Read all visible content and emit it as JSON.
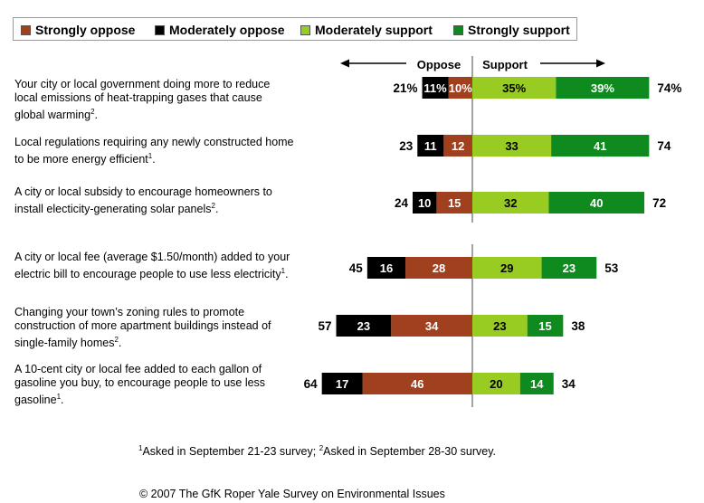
{
  "legend": {
    "items": [
      {
        "label": "Strongly oppose",
        "color": "#a0401e"
      },
      {
        "label": "Moderately oppose",
        "color": "#000000"
      },
      {
        "label": "Moderately support",
        "color": "#99cc22"
      },
      {
        "label": "Strongly support",
        "color": "#0e8a1e"
      }
    ]
  },
  "axis": {
    "oppose_label": "Oppose",
    "support_label": "Support"
  },
  "chart_data": {
    "type": "bar",
    "orientation": "diverging-horizontal",
    "categories": [
      "Your city or local government doing more to reduce local emissions of heat-trapping gases that cause global warming",
      "Local regulations requiring any newly constructed home to be more energy efficient",
      "A city or local subsidy to encourage homeowners to install electicity-generating solar panels",
      "A city or local fee (average $1.50/month) added to your electric bill to encourage people to use less electricity",
      "Changing your town’s zoning rules to promote construction of more apartment buildings instead of single-family homes",
      "A 10-cent city or local fee added to each gallon of gasoline you buy, to encourage people to use less gasoline"
    ],
    "footnote_marks": [
      "2",
      "1",
      "2",
      "1",
      "2",
      "1"
    ],
    "series": [
      {
        "name": "Strongly oppose",
        "color": "#a0401e",
        "values": [
          10,
          12,
          15,
          28,
          34,
          46
        ],
        "labels": [
          "10%",
          "12",
          "15",
          "28",
          "34",
          "46"
        ]
      },
      {
        "name": "Moderately oppose",
        "color": "#000000",
        "values": [
          11,
          11,
          10,
          16,
          23,
          17
        ],
        "labels": [
          "11%",
          "11",
          "10",
          "16",
          "23",
          "17"
        ]
      },
      {
        "name": "Moderately support",
        "color": "#99cc22",
        "values": [
          35,
          33,
          32,
          29,
          23,
          20
        ],
        "labels": [
          "35%",
          "33",
          "32",
          "29",
          "23",
          "20"
        ]
      },
      {
        "name": "Strongly support",
        "color": "#0e8a1e",
        "values": [
          39,
          41,
          40,
          23,
          15,
          14
        ],
        "labels": [
          "39%",
          "41",
          "40",
          "23",
          "15",
          "14"
        ]
      }
    ],
    "oppose_totals": [
      "21%",
      "23",
      "24",
      "45",
      "57",
      "64"
    ],
    "support_totals": [
      "74%",
      "74",
      "72",
      "53",
      "38",
      "34"
    ]
  },
  "footnote": {
    "mark1": "1",
    "text1": "Asked in September 21-23 survey; ",
    "mark2": "2",
    "text2": "Asked in September 28-30 survey."
  },
  "source": "© 2007 The GfK Roper Yale Survey on Environmental Issues"
}
